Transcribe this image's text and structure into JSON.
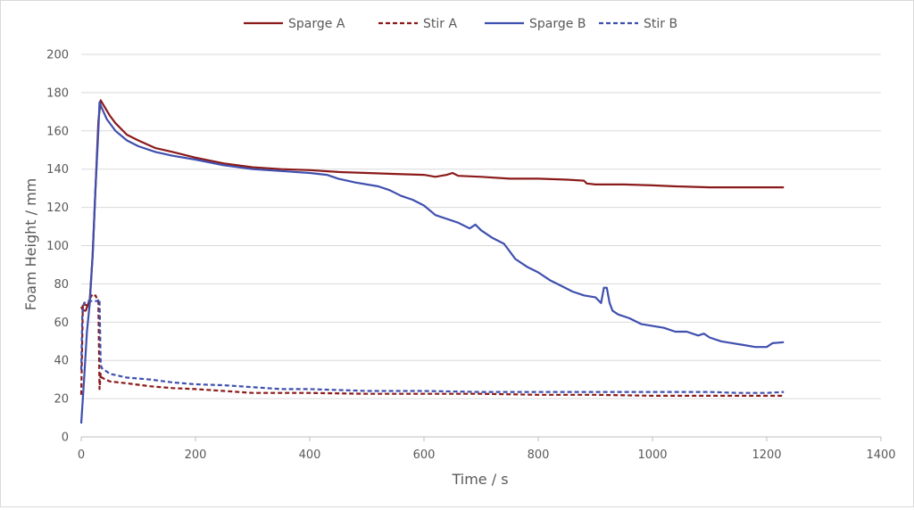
{
  "chart_data": {
    "type": "line",
    "title": "",
    "xlabel": "Time  / s",
    "ylabel": "Foam Height  / mm",
    "xlim": [
      0,
      1400
    ],
    "ylim": [
      0,
      200
    ],
    "xticks": [
      0,
      200,
      400,
      600,
      800,
      1000,
      1200,
      1400
    ],
    "yticks": [
      0,
      20,
      40,
      60,
      80,
      100,
      120,
      140,
      160,
      180,
      200
    ],
    "grid": "horizontal",
    "legend": "top",
    "series": [
      {
        "name": "Sparge A",
        "color": "#8b1a1a",
        "dash": "solid",
        "points": [
          [
            0,
            68
          ],
          [
            3,
            66
          ],
          [
            8,
            66
          ],
          [
            15,
            72
          ],
          [
            20,
            95
          ],
          [
            25,
            130
          ],
          [
            30,
            165
          ],
          [
            34,
            176
          ],
          [
            40,
            173
          ],
          [
            50,
            168
          ],
          [
            60,
            164
          ],
          [
            80,
            158
          ],
          [
            100,
            155
          ],
          [
            130,
            151
          ],
          [
            160,
            149
          ],
          [
            200,
            146
          ],
          [
            250,
            143
          ],
          [
            300,
            141
          ],
          [
            350,
            140
          ],
          [
            400,
            139.5
          ],
          [
            450,
            138.5
          ],
          [
            500,
            138
          ],
          [
            550,
            137.5
          ],
          [
            600,
            137
          ],
          [
            620,
            136
          ],
          [
            640,
            137
          ],
          [
            650,
            138
          ],
          [
            660,
            136.5
          ],
          [
            700,
            136
          ],
          [
            750,
            135
          ],
          [
            800,
            135
          ],
          [
            850,
            134.5
          ],
          [
            880,
            134
          ],
          [
            885,
            132.5
          ],
          [
            900,
            132
          ],
          [
            950,
            132
          ],
          [
            1000,
            131.5
          ],
          [
            1040,
            131
          ],
          [
            1100,
            130.5
          ],
          [
            1150,
            130.5
          ],
          [
            1200,
            130.5
          ],
          [
            1230,
            130.5
          ]
        ]
      },
      {
        "name": "Stir A",
        "color": "#8b1a1a",
        "dash": "dashed",
        "points": [
          [
            0,
            22
          ],
          [
            3,
            70
          ],
          [
            8,
            69
          ],
          [
            12,
            68
          ],
          [
            15,
            72
          ],
          [
            18,
            74
          ],
          [
            22,
            73
          ],
          [
            25,
            74
          ],
          [
            28,
            72
          ],
          [
            30,
            71
          ],
          [
            32,
            25
          ],
          [
            34,
            33
          ],
          [
            36,
            31
          ],
          [
            50,
            29
          ],
          [
            80,
            28
          ],
          [
            120,
            26.5
          ],
          [
            160,
            25.5
          ],
          [
            200,
            25
          ],
          [
            250,
            24
          ],
          [
            300,
            23
          ],
          [
            400,
            23
          ],
          [
            500,
            22.5
          ],
          [
            600,
            22.5
          ],
          [
            700,
            22.5
          ],
          [
            800,
            22
          ],
          [
            900,
            22
          ],
          [
            1000,
            21.5
          ],
          [
            1100,
            21.5
          ],
          [
            1200,
            21.5
          ],
          [
            1230,
            21.5
          ]
        ]
      },
      {
        "name": "Sparge B",
        "color": "#3f4fae",
        "dash": "solid",
        "points": [
          [
            0,
            7
          ],
          [
            5,
            30
          ],
          [
            10,
            55
          ],
          [
            15,
            70
          ],
          [
            20,
            95
          ],
          [
            25,
            130
          ],
          [
            30,
            160
          ],
          [
            32,
            175
          ],
          [
            36,
            172
          ],
          [
            45,
            166
          ],
          [
            60,
            160
          ],
          [
            80,
            155
          ],
          [
            100,
            152
          ],
          [
            130,
            149
          ],
          [
            160,
            147
          ],
          [
            200,
            145
          ],
          [
            250,
            142
          ],
          [
            300,
            140
          ],
          [
            350,
            139
          ],
          [
            400,
            138
          ],
          [
            430,
            137
          ],
          [
            450,
            135
          ],
          [
            480,
            133
          ],
          [
            520,
            131
          ],
          [
            540,
            129
          ],
          [
            560,
            126
          ],
          [
            580,
            124
          ],
          [
            600,
            121
          ],
          [
            620,
            116
          ],
          [
            640,
            114
          ],
          [
            660,
            112
          ],
          [
            680,
            109
          ],
          [
            690,
            111
          ],
          [
            700,
            108
          ],
          [
            720,
            104
          ],
          [
            740,
            101
          ],
          [
            750,
            97
          ],
          [
            760,
            93
          ],
          [
            780,
            89
          ],
          [
            800,
            86
          ],
          [
            820,
            82
          ],
          [
            840,
            79
          ],
          [
            860,
            76
          ],
          [
            880,
            74
          ],
          [
            900,
            73
          ],
          [
            910,
            70
          ],
          [
            915,
            78
          ],
          [
            920,
            78
          ],
          [
            925,
            70
          ],
          [
            930,
            66
          ],
          [
            940,
            64
          ],
          [
            960,
            62
          ],
          [
            980,
            59
          ],
          [
            1000,
            58
          ],
          [
            1020,
            57
          ],
          [
            1040,
            55
          ],
          [
            1060,
            55
          ],
          [
            1080,
            53
          ],
          [
            1090,
            54
          ],
          [
            1100,
            52
          ],
          [
            1120,
            50
          ],
          [
            1140,
            49
          ],
          [
            1160,
            48
          ],
          [
            1180,
            47
          ],
          [
            1200,
            47
          ],
          [
            1210,
            49
          ],
          [
            1230,
            49.5
          ]
        ]
      },
      {
        "name": "Stir B",
        "color": "#3f4fae",
        "dash": "dashed",
        "points": [
          [
            0,
            35
          ],
          [
            2,
            65
          ],
          [
            5,
            70
          ],
          [
            10,
            71
          ],
          [
            20,
            71
          ],
          [
            28,
            71
          ],
          [
            32,
            72
          ],
          [
            34,
            38
          ],
          [
            36,
            36
          ],
          [
            50,
            33
          ],
          [
            80,
            31
          ],
          [
            120,
            30
          ],
          [
            160,
            28.5
          ],
          [
            200,
            27.5
          ],
          [
            250,
            27
          ],
          [
            300,
            26
          ],
          [
            350,
            25
          ],
          [
            400,
            25
          ],
          [
            500,
            24
          ],
          [
            600,
            24
          ],
          [
            700,
            23.5
          ],
          [
            800,
            23.5
          ],
          [
            900,
            23.5
          ],
          [
            1000,
            23.5
          ],
          [
            1100,
            23.5
          ],
          [
            1150,
            23
          ],
          [
            1200,
            23
          ],
          [
            1230,
            23.5
          ]
        ]
      }
    ]
  }
}
